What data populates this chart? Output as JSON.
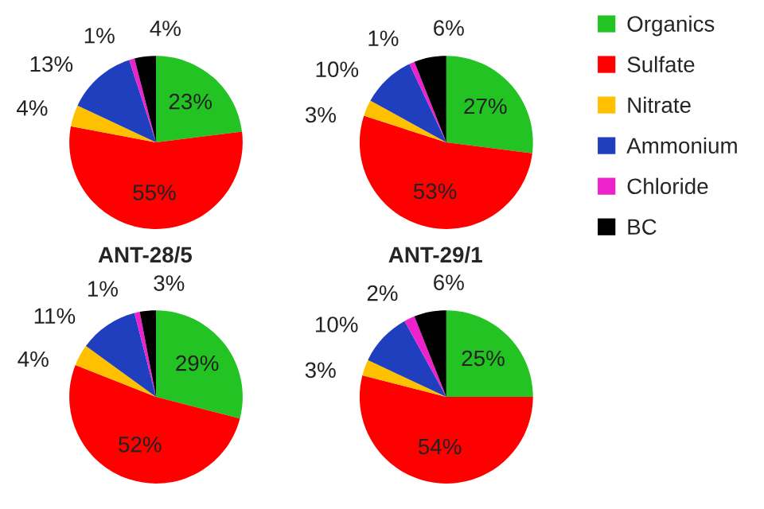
{
  "chart_data": [
    {
      "type": "pie",
      "categories": [
        "Organics",
        "Sulfate",
        "Nitrate",
        "Ammonium",
        "Chloride",
        "BC"
      ],
      "values": [
        23,
        55,
        4,
        13,
        1,
        4
      ],
      "value_labels": [
        "23%",
        "55%",
        "4%",
        "13%",
        "1%",
        "4%"
      ],
      "colors": [
        "#22c322",
        "#ff0000",
        "#ffc000",
        "#1f3fbf",
        "#ee22cc",
        "#000000"
      ],
      "legend": "right"
    },
    {
      "type": "pie",
      "categories": [
        null,
        null,
        null,
        null,
        null,
        null
      ],
      "values": [
        27,
        53,
        3,
        10,
        1,
        6
      ],
      "value_labels": [
        "27%",
        "53%",
        "3%",
        "10%",
        "1%",
        "6%"
      ],
      "colors": [
        "#22c322",
        "#ff0000",
        "#ffc000",
        "#1f3fbf",
        "#ee22cc",
        "#000000"
      ],
      "legend": false
    },
    {
      "type": "pie",
      "title": "ANT-28/5",
      "categories": [
        null,
        null,
        null,
        null,
        null,
        null
      ],
      "values": [
        29,
        52,
        4,
        11,
        1,
        3
      ],
      "value_labels": [
        "29%",
        "52%",
        "4%",
        "11%",
        "1%",
        "3%"
      ],
      "colors": [
        "#22c322",
        "#ff0000",
        "#ffc000",
        "#1f3fbf",
        "#ee22cc",
        "#000000"
      ],
      "legend": false
    },
    {
      "type": "pie",
      "title": "ANT-29/1",
      "categories": [
        null,
        null,
        null,
        null,
        null,
        null
      ],
      "values": [
        25,
        54,
        3,
        10,
        2,
        6
      ],
      "value_labels": [
        "25%",
        "54%",
        "3%",
        "10%",
        "2%",
        "6%"
      ],
      "colors": [
        "#22c322",
        "#ff0000",
        "#ffc000",
        "#1f3fbf",
        "#ee22cc",
        "#000000"
      ],
      "legend": false
    }
  ]
}
